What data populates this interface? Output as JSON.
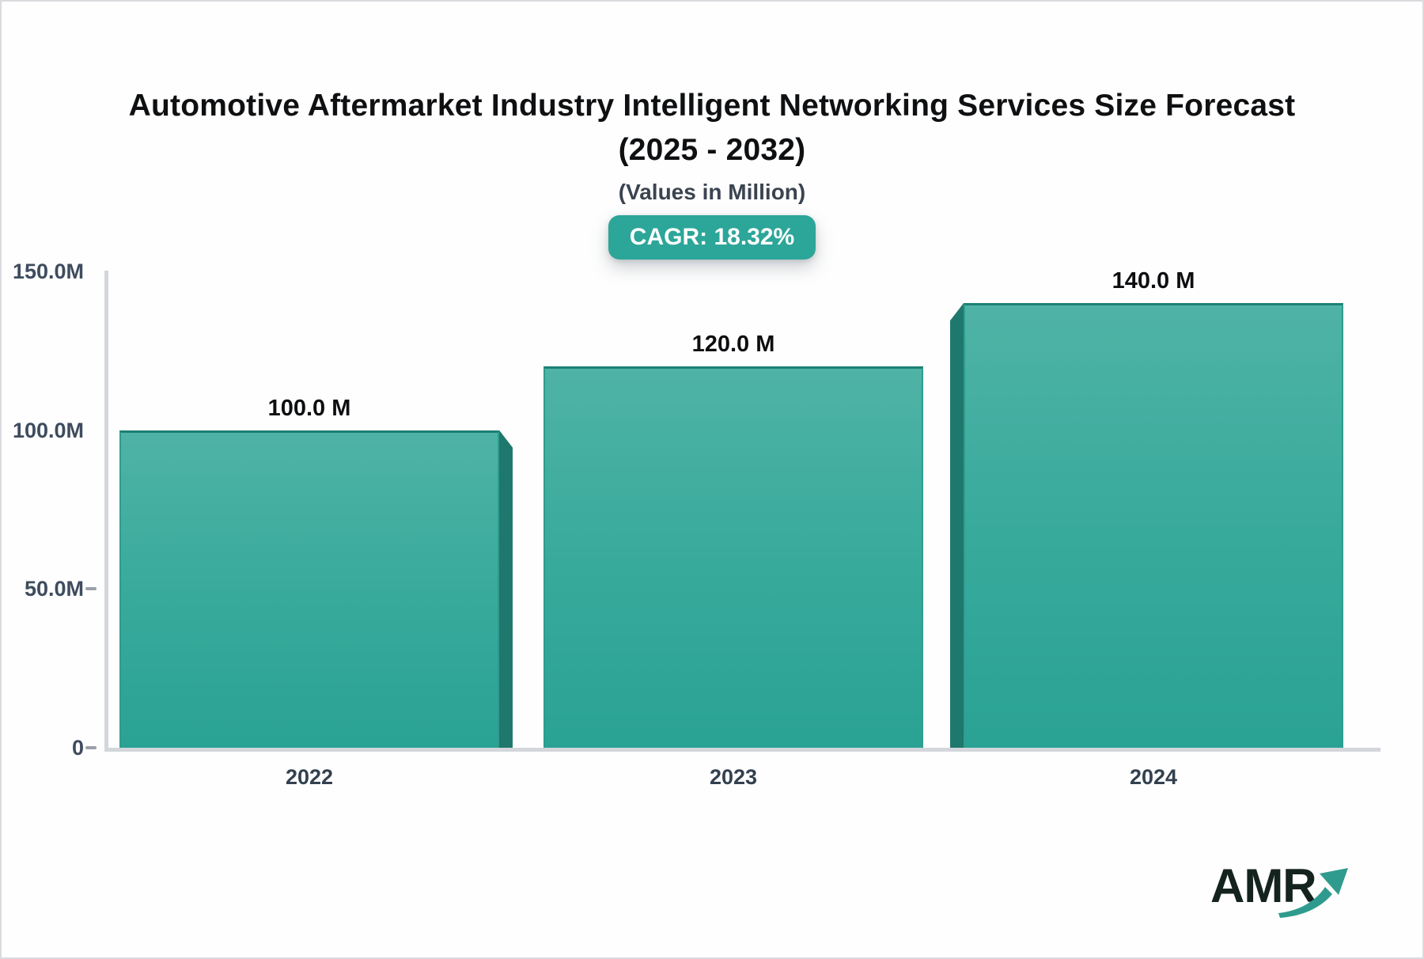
{
  "page": {
    "title_line1": "Automotive Aftermarket Industry Intelligent Networking Services Size Forecast",
    "title_line2": "(2025 - 2032)",
    "subtitle": "(Values in Million)",
    "cagr_badge": "CAGR: 18.32%",
    "logo_text": "AMR",
    "colors": {
      "accent_teal": "#2ca699",
      "bar_gradient_top": "#4fb3a6",
      "bar_gradient_bottom": "#2aa294",
      "bar_side_dark": "#1f786d",
      "bar_border": "#1d8073",
      "axis_gray": "#d3d6db",
      "tick_dash_gray": "#99a0a8",
      "ylabel_color": "#3e4c5e",
      "xlabel_color": "#33404f",
      "title_color": "#0f1012",
      "logo_dark": "#15231f",
      "logo_arrow_teal": "#2f9b8e"
    }
  },
  "chart_data": {
    "type": "bar",
    "title": "Automotive Aftermarket Industry Intelligent Networking Services Size Forecast (2025 - 2032)",
    "subtitle": "(Values in Million)",
    "unit": "Million",
    "cagr_pct": 18.32,
    "categories": [
      "2022",
      "2023",
      "2024"
    ],
    "values": [
      100,
      120,
      140
    ],
    "value_labels": [
      "100.0 M",
      "120.0 M",
      "140.0 M"
    ],
    "yticks": [
      {
        "value": 150,
        "label": "150.0M",
        "dash": false
      },
      {
        "value": 100,
        "label": "100.0M",
        "dash": false
      },
      {
        "value": 50,
        "label": "50.0M",
        "dash": true
      },
      {
        "value": 0,
        "label": "0",
        "dash": true
      }
    ],
    "ylim": [
      0,
      150
    ],
    "grid": false,
    "legend": null
  }
}
